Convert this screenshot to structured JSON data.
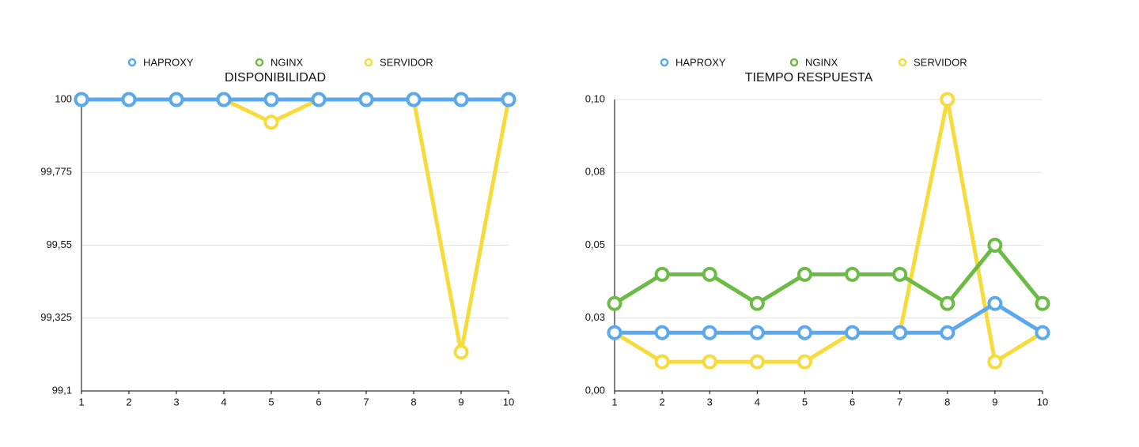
{
  "chart_data": [
    {
      "type": "line",
      "title": "DISPONIBILIDAD",
      "categories": [
        "1",
        "2",
        "3",
        "4",
        "5",
        "6",
        "7",
        "8",
        "9",
        "10"
      ],
      "series": [
        {
          "name": "HAPROXY",
          "color": "#5aa9ee",
          "values": [
            100,
            100,
            100,
            100,
            100,
            100,
            100,
            100,
            100,
            100
          ]
        },
        {
          "name": "NGINX",
          "color": "#6bbb45",
          "values": [
            100,
            100,
            100,
            100,
            100,
            100,
            100,
            100,
            100,
            100
          ]
        },
        {
          "name": "SERVIDOR",
          "color": "#f5dc3c",
          "values": [
            100,
            100,
            100,
            100,
            99.93,
            100,
            100,
            100,
            99.22,
            100
          ]
        }
      ],
      "ylim": [
        99.1,
        100
      ],
      "yticks": [
        {
          "value": 99.1,
          "label": "99,1"
        },
        {
          "value": 99.325,
          "label": "99,325"
        },
        {
          "value": 99.55,
          "label": "99,55"
        },
        {
          "value": 99.775,
          "label": "99,775"
        },
        100
      ],
      "grid": true
    },
    {
      "type": "line",
      "title": "TIEMPO RESPUESTA",
      "categories": [
        "1",
        "2",
        "3",
        "4",
        "5",
        "6",
        "7",
        "8",
        "9",
        "10"
      ],
      "series": [
        {
          "name": "HAPROXY",
          "color": "#5aa9ee",
          "values": [
            0.02,
            0.02,
            0.02,
            0.02,
            0.02,
            0.02,
            0.02,
            0.02,
            0.03,
            0.02
          ]
        },
        {
          "name": "NGINX",
          "color": "#6bbb45",
          "values": [
            0.03,
            0.04,
            0.04,
            0.03,
            0.04,
            0.04,
            0.04,
            0.03,
            0.05,
            0.03
          ]
        },
        {
          "name": "SERVIDOR",
          "color": "#f5dc3c",
          "values": [
            0.02,
            0.01,
            0.01,
            0.01,
            0.01,
            0.02,
            0.02,
            0.1,
            0.01,
            0.02
          ]
        }
      ],
      "ylim": [
        0,
        0.1
      ],
      "yticks": [
        {
          "value": 0,
          "label": "0,00"
        },
        {
          "value": 0.025,
          "label": "0,03"
        },
        {
          "value": 0.05,
          "label": "0,05"
        },
        {
          "value": 0.075,
          "label": "0,08"
        },
        {
          "value": 0.1,
          "label": "0,10"
        }
      ],
      "grid": true
    }
  ]
}
